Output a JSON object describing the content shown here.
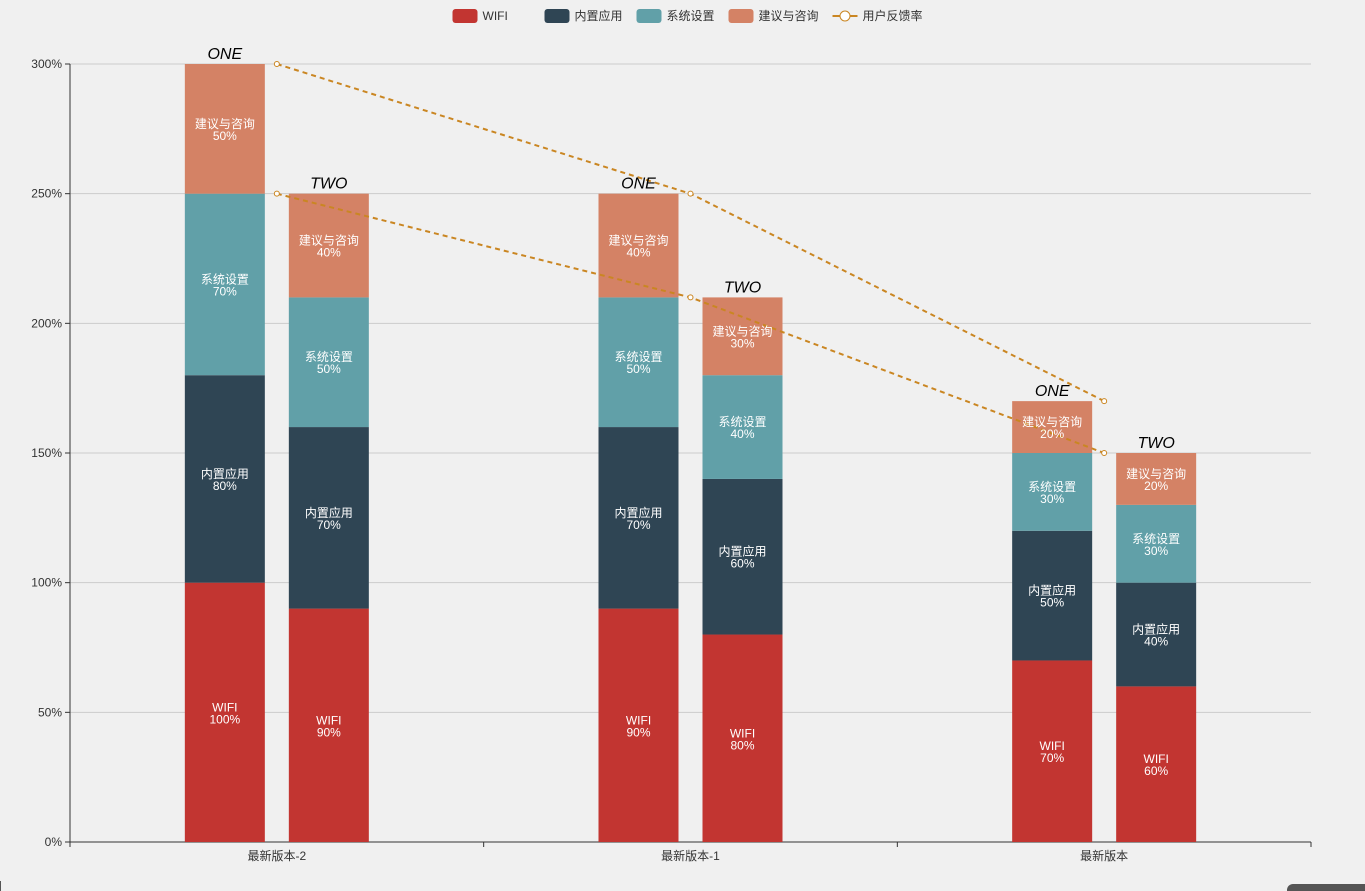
{
  "chart_data": {
    "type": "bar",
    "stacked": true,
    "categories": [
      "最新版本-2",
      "最新版本-1",
      "最新版本"
    ],
    "stack_names": [
      "ONE",
      "TWO"
    ],
    "yAxis": {
      "min": 0,
      "max": 300,
      "ticks": [
        "0%",
        "50%",
        "100%",
        "150%",
        "200%",
        "250%",
        "300%"
      ],
      "grid": true
    },
    "legend": {
      "position": "top-center",
      "items": [
        {
          "name": "WIFI",
          "type": "bar",
          "color": "#c23531"
        },
        {
          "name": "内置应用",
          "type": "bar",
          "color": "#2f4554"
        },
        {
          "name": "系统设置",
          "type": "bar",
          "color": "#61a0a8"
        },
        {
          "name": "建议与咨询",
          "type": "bar",
          "color": "#d48265"
        },
        {
          "name": "用户反馈率",
          "type": "line",
          "color": "#ca8622"
        }
      ]
    },
    "series": [
      {
        "name": "WIFI",
        "stack": "ONE",
        "values": [
          100,
          90,
          70
        ]
      },
      {
        "name": "内置应用",
        "stack": "ONE",
        "values": [
          80,
          70,
          50
        ]
      },
      {
        "name": "系统设置",
        "stack": "ONE",
        "values": [
          70,
          50,
          30
        ]
      },
      {
        "name": "建议与咨询",
        "stack": "ONE",
        "values": [
          50,
          40,
          20
        ]
      },
      {
        "name": "WIFI",
        "stack": "TWO",
        "values": [
          90,
          80,
          60
        ]
      },
      {
        "name": "内置应用",
        "stack": "TWO",
        "values": [
          70,
          60,
          40
        ]
      },
      {
        "name": "系统设置",
        "stack": "TWO",
        "values": [
          50,
          40,
          30
        ]
      },
      {
        "name": "建议与咨询",
        "stack": "TWO",
        "values": [
          40,
          30,
          20
        ]
      }
    ],
    "lines": [
      {
        "name": "用户反馈率",
        "stack": "ONE",
        "values": [
          300,
          250,
          170
        ],
        "style": "dashed"
      },
      {
        "name": "用户反馈率",
        "stack": "TWO",
        "values": [
          250,
          210,
          150
        ],
        "style": "dashed"
      }
    ],
    "value_suffix": "%"
  }
}
